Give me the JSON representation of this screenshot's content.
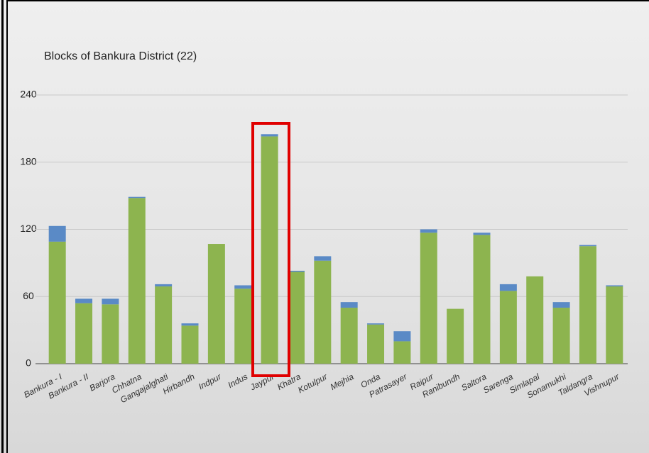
{
  "chart_data": {
    "type": "stacked-bar",
    "title": "Blocks of Bankura District (22)",
    "categories": [
      "Bankura - I",
      "Bankura - II",
      "Barjora",
      "Chhatna",
      "Gangajalghati",
      "Hirbandh",
      "Indpur",
      "Indus",
      "Jaypur",
      "Khatra",
      "Kotulpur",
      "Mejhia",
      "Onda",
      "Patrasayer",
      "Raipur",
      "Ranibundh",
      "Saltora",
      "Sarenga",
      "Simlapal",
      "Sonamukhi",
      "Taldangra",
      "Vishnupur"
    ],
    "series": [
      {
        "color": "#8db44f",
        "values": [
          109,
          54,
          53,
          148,
          69,
          34,
          107,
          67,
          203,
          82,
          92,
          50,
          35,
          20,
          117,
          49,
          115,
          65,
          78,
          50,
          105,
          69
        ]
      },
      {
        "color": "#5a8ac6",
        "values": [
          14,
          4,
          5,
          1,
          2,
          2,
          0,
          3,
          2,
          1,
          4,
          5,
          1,
          9,
          3,
          0,
          2,
          6,
          0,
          5,
          1,
          1
        ]
      }
    ],
    "ylim": [
      0,
      240
    ],
    "yticks": [
      0,
      60,
      120,
      180,
      240
    ],
    "grid": true
  }
}
